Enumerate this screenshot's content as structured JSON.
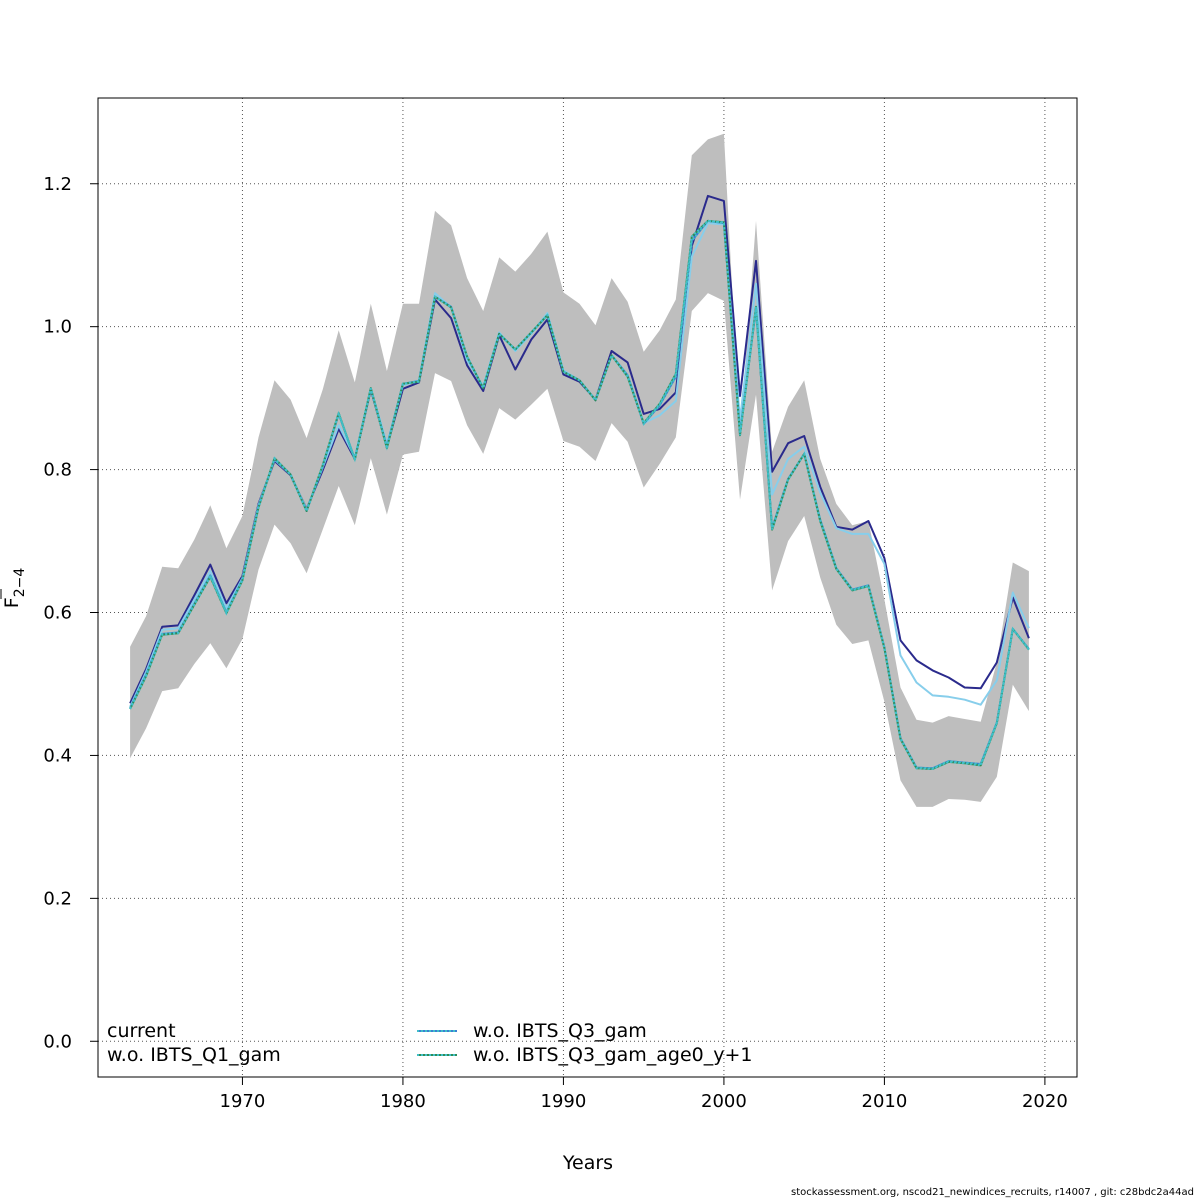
{
  "footer": "stockassessment.org, nscod21_newindices_recruits, r14007 , git: c28bdc2a44ad",
  "chart_data": {
    "type": "line",
    "xlabel": "Years",
    "ylabel_main": "F",
    "ylabel_sub": "2−4",
    "xlim": [
      1961,
      2022
    ],
    "ylim": [
      -0.05,
      1.32
    ],
    "xticks": [
      1970,
      1980,
      1990,
      2000,
      2010,
      2020
    ],
    "yticks": [
      0.0,
      0.2,
      0.4,
      0.6,
      0.8,
      1.0,
      1.2
    ],
    "ytick_labels": [
      "0.0",
      "0.2",
      "0.4",
      "0.6",
      "0.8",
      "1.0",
      "1.2"
    ],
    "grid": true,
    "legend_placement": "bottom",
    "years": [
      1963,
      1964,
      1965,
      1966,
      1967,
      1968,
      1969,
      1970,
      1971,
      1972,
      1973,
      1974,
      1975,
      1976,
      1977,
      1978,
      1979,
      1980,
      1981,
      1982,
      1983,
      1984,
      1985,
      1986,
      1987,
      1988,
      1989,
      1990,
      1991,
      1992,
      1993,
      1994,
      1995,
      1996,
      1997,
      1998,
      1999,
      2000,
      2001,
      2002,
      2003,
      2004,
      2005,
      2006,
      2007,
      2008,
      2009,
      2010,
      2011,
      2012,
      2013,
      2014,
      2015,
      2016,
      2017,
      2018,
      2019
    ],
    "band": {
      "color": "#bebebe",
      "upper": [
        0.552,
        0.595,
        0.664,
        0.662,
        0.702,
        0.75,
        0.69,
        0.735,
        0.845,
        0.925,
        0.898,
        0.844,
        0.912,
        0.995,
        0.922,
        1.032,
        0.938,
        1.032,
        1.032,
        1.162,
        1.142,
        1.068,
        1.022,
        1.097,
        1.077,
        1.102,
        1.133,
        1.048,
        1.032,
        1.002,
        1.068,
        1.035,
        0.965,
        0.995,
        1.038,
        1.24,
        1.262,
        1.27,
        0.848,
        1.148,
        0.825,
        0.888,
        0.925,
        0.815,
        0.752,
        0.722,
        0.728,
        0.618,
        0.495,
        0.45,
        0.446,
        0.455,
        0.451,
        0.447,
        0.53,
        0.67,
        0.658
      ],
      "lower": [
        0.396,
        0.438,
        0.49,
        0.494,
        0.528,
        0.557,
        0.522,
        0.563,
        0.66,
        0.723,
        0.697,
        0.655,
        0.716,
        0.777,
        0.722,
        0.816,
        0.737,
        0.821,
        0.825,
        0.935,
        0.924,
        0.862,
        0.822,
        0.886,
        0.87,
        0.891,
        0.913,
        0.84,
        0.832,
        0.812,
        0.865,
        0.839,
        0.775,
        0.808,
        0.845,
        1.022,
        1.047,
        1.036,
        0.758,
        0.905,
        0.631,
        0.7,
        0.735,
        0.649,
        0.583,
        0.556,
        0.561,
        0.475,
        0.365,
        0.328,
        0.328,
        0.339,
        0.338,
        0.335,
        0.37,
        0.499,
        0.462
      ]
    },
    "series": [
      {
        "name": "current",
        "color": "#2a2a8c",
        "dash": "none",
        "values": [
          0.473,
          0.521,
          0.58,
          0.582,
          0.624,
          0.667,
          0.613,
          0.651,
          0.752,
          0.812,
          0.792,
          0.745,
          0.799,
          0.857,
          0.815,
          0.912,
          0.832,
          0.913,
          0.922,
          1.038,
          1.012,
          0.946,
          0.91,
          0.988,
          0.94,
          0.982,
          1.01,
          0.933,
          0.923,
          0.898,
          0.966,
          0.95,
          0.878,
          0.885,
          0.908,
          1.113,
          1.183,
          1.176,
          0.903,
          1.092,
          0.797,
          0.837,
          0.847,
          0.776,
          0.72,
          0.716,
          0.728,
          0.676,
          0.561,
          0.533,
          0.519,
          0.509,
          0.495,
          0.494,
          0.53,
          0.621,
          0.564
        ]
      },
      {
        "name": "w.o. IBTS_Q1_gam",
        "color": "#87ceeb",
        "dash": "none",
        "values": [
          0.468,
          0.517,
          0.576,
          0.578,
          0.618,
          0.658,
          0.606,
          0.648,
          0.75,
          0.814,
          0.793,
          0.744,
          0.803,
          0.862,
          0.817,
          0.914,
          0.836,
          0.918,
          0.925,
          1.047,
          1.027,
          0.953,
          0.917,
          0.992,
          0.966,
          0.99,
          1.019,
          0.939,
          0.925,
          0.898,
          0.96,
          0.932,
          0.865,
          0.876,
          0.896,
          1.098,
          1.145,
          1.143,
          0.87,
          1.06,
          0.765,
          0.815,
          0.832,
          0.768,
          0.718,
          0.71,
          0.71,
          0.668,
          0.54,
          0.502,
          0.484,
          0.482,
          0.478,
          0.471,
          0.505,
          0.628,
          0.578
        ]
      },
      {
        "name": "w.o. IBTS_Q3_gam",
        "color": "#3b7fd4",
        "dash": "dot",
        "values": [
          0.466,
          0.513,
          0.57,
          0.572,
          0.612,
          0.652,
          0.6,
          0.646,
          0.748,
          0.815,
          0.793,
          0.742,
          0.805,
          0.878,
          0.815,
          0.913,
          0.832,
          0.92,
          0.924,
          1.042,
          1.028,
          0.958,
          0.914,
          0.99,
          0.968,
          0.992,
          1.016,
          0.937,
          0.925,
          0.897,
          0.96,
          0.932,
          0.864,
          0.89,
          0.93,
          1.12,
          1.148,
          1.145,
          0.852,
          1.025,
          0.718,
          0.787,
          0.822,
          0.73,
          0.662,
          0.632,
          0.638,
          0.551,
          0.424,
          0.383,
          0.382,
          0.392,
          0.39,
          0.388,
          0.446,
          0.577,
          0.549
        ]
      },
      {
        "name": "w.o. IBTS_Q3_gam_age0_y+1",
        "color": "#2e8b57",
        "dash": "dot",
        "values": [
          0.465,
          0.511,
          0.569,
          0.571,
          0.611,
          0.65,
          0.599,
          0.645,
          0.747,
          0.816,
          0.793,
          0.742,
          0.806,
          0.879,
          0.814,
          0.914,
          0.83,
          0.92,
          0.923,
          1.042,
          1.027,
          0.958,
          0.914,
          0.99,
          0.968,
          0.992,
          1.016,
          0.937,
          0.925,
          0.897,
          0.96,
          0.93,
          0.865,
          0.892,
          0.934,
          1.126,
          1.148,
          1.146,
          0.848,
          1.028,
          0.716,
          0.786,
          0.822,
          0.728,
          0.661,
          0.631,
          0.637,
          0.55,
          0.423,
          0.382,
          0.381,
          0.391,
          0.389,
          0.386,
          0.445,
          0.577,
          0.548
        ]
      }
    ],
    "overlay_color": "#40c0c8"
  }
}
